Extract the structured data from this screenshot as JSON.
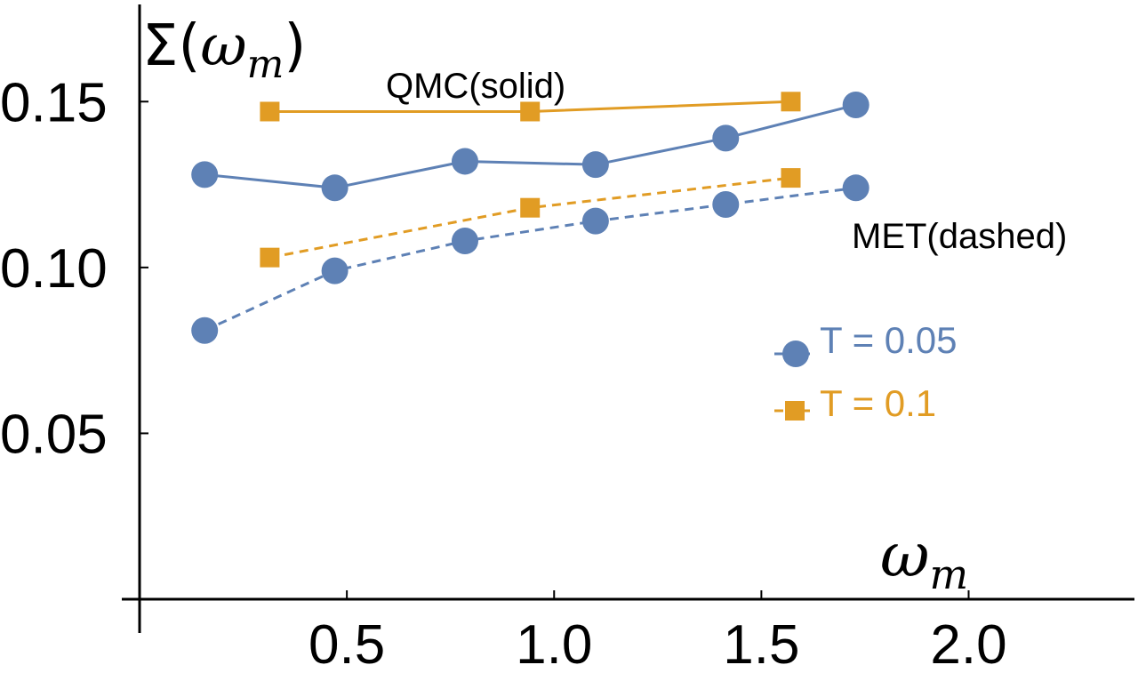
{
  "chart_data": {
    "type": "line",
    "title": "",
    "xlabel": "ω",
    "xlabel_sub": "m",
    "ylabel_prefix": "Σ(",
    "ylabel_var": "ω",
    "ylabel_sub": "m",
    "ylabel_suffix": ")",
    "xlim": [
      0,
      2.4
    ],
    "ylim": [
      0,
      0.175
    ],
    "xticks": [
      0.5,
      1.0,
      1.5,
      2.0
    ],
    "xtick_labels": [
      "0.5",
      "1.0",
      "1.5",
      "2.0"
    ],
    "yticks": [
      0.05,
      0.1,
      0.15
    ],
    "ytick_labels": [
      "0.05",
      "0.10",
      "0.15"
    ],
    "annotations": {
      "qmc": "QMC(solid)",
      "met": "MET(dashed)"
    },
    "series": [
      {
        "name": "T = 0.05 QMC",
        "legend": "T = 0.05",
        "group": "T005",
        "method": "QMC",
        "style": "solid",
        "marker": "circle",
        "color": "#5E81B5",
        "x": [
          0.157,
          0.471,
          0.785,
          1.1,
          1.414,
          1.728
        ],
        "y": [
          0.128,
          0.124,
          0.132,
          0.131,
          0.139,
          0.149
        ]
      },
      {
        "name": "T = 0.05 MET",
        "legend": "T = 0.05",
        "group": "T005",
        "method": "MET",
        "style": "dashed",
        "marker": "circle",
        "color": "#5E81B5",
        "x": [
          0.157,
          0.471,
          0.785,
          1.1,
          1.414,
          1.728
        ],
        "y": [
          0.081,
          0.099,
          0.108,
          0.114,
          0.119,
          0.124
        ]
      },
      {
        "name": "T = 0.1 QMC",
        "legend": "T = 0.1",
        "group": "T01",
        "method": "QMC",
        "style": "solid",
        "marker": "square",
        "color": "#E19C24",
        "x": [
          0.314,
          0.942,
          1.571
        ],
        "y": [
          0.147,
          0.147,
          0.15
        ]
      },
      {
        "name": "T = 0.1 MET",
        "legend": "T = 0.1",
        "group": "T01",
        "method": "MET",
        "style": "dashed",
        "marker": "square",
        "color": "#E19C24",
        "x": [
          0.314,
          0.942,
          1.571
        ],
        "y": [
          0.103,
          0.118,
          0.127
        ]
      }
    ],
    "legend": [
      {
        "label": "T = 0.05",
        "marker": "circle",
        "color": "#5E81B5"
      },
      {
        "label": "T = 0.1",
        "marker": "square",
        "color": "#E19C24"
      }
    ],
    "legend_position": "right-middle",
    "grid": false
  }
}
